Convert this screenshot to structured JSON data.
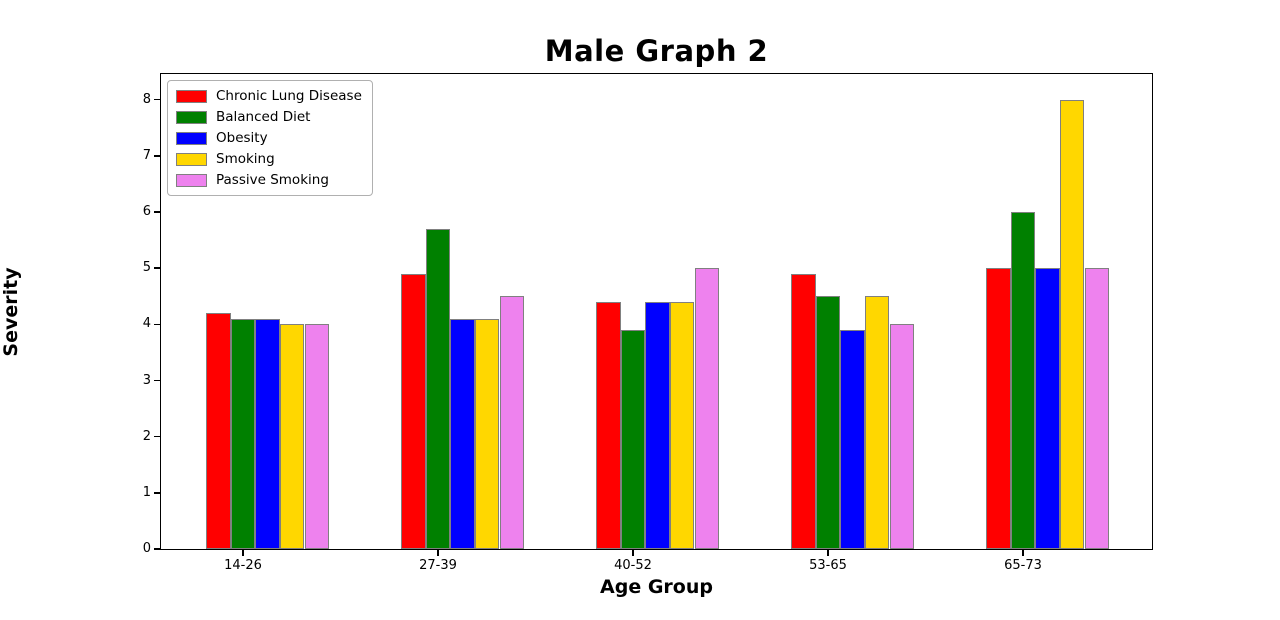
{
  "chart_data": {
    "type": "bar",
    "title": "Male Graph 2",
    "xlabel": "Age Group",
    "ylabel": "Severity",
    "categories": [
      "14-26",
      "27-39",
      "40-52",
      "53-65",
      "65-73"
    ],
    "series": [
      {
        "name": "Chronic Lung Disease",
        "color": "#ff0000",
        "values": [
          4.2,
          4.9,
          4.4,
          4.9,
          5.0
        ]
      },
      {
        "name": "Balanced Diet",
        "color": "#008000",
        "values": [
          4.1,
          5.7,
          3.9,
          4.5,
          6.0
        ]
      },
      {
        "name": "Obesity",
        "color": "#0000ff",
        "values": [
          4.1,
          4.1,
          4.4,
          3.9,
          5.0
        ]
      },
      {
        "name": "Smoking",
        "color": "#ffd700",
        "values": [
          4.0,
          4.1,
          4.4,
          4.5,
          8.0
        ]
      },
      {
        "name": "Passive Smoking",
        "color": "#ee82ee",
        "values": [
          4.0,
          4.5,
          5.0,
          4.0,
          5.0
        ]
      }
    ],
    "y_ticks": [
      0,
      1,
      2,
      3,
      4,
      5,
      6,
      7,
      8
    ],
    "ylim": [
      0,
      8.44
    ],
    "grid": false,
    "legend_position": "upper left",
    "bar_edge_color": "#808080",
    "background_color": "#ffffff"
  }
}
